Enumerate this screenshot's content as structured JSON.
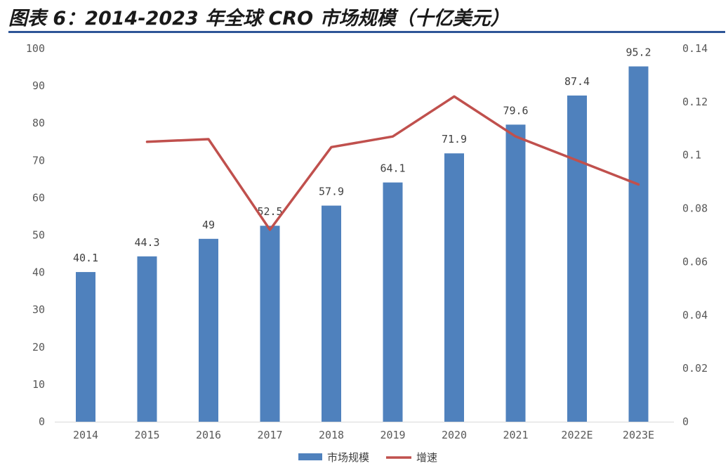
{
  "figure_title": "图表 6：2014-2023 年全球 CRO 市场规模（十亿美元）",
  "colors": {
    "bar": "#4f81bd",
    "line": "#c0504d",
    "accent_rule": "#2e5597"
  },
  "chart_data": {
    "type": "bar",
    "categories": [
      "2014",
      "2015",
      "2016",
      "2017",
      "2018",
      "2019",
      "2020",
      "2021",
      "2022E",
      "2023E"
    ],
    "series": [
      {
        "name": "市场规模",
        "type": "bar",
        "axis": "left",
        "values": [
          40.1,
          44.3,
          49,
          52.5,
          57.9,
          64.1,
          71.9,
          79.6,
          87.4,
          95.2
        ],
        "labels": [
          "40.1",
          "44.3",
          "49",
          "52.5",
          "57.9",
          "64.1",
          "71.9",
          "79.6",
          "87.4",
          "95.2"
        ]
      },
      {
        "name": "增速",
        "type": "line",
        "axis": "right",
        "values": [
          null,
          0.105,
          0.106,
          0.072,
          0.103,
          0.107,
          0.122,
          0.107,
          0.098,
          0.089
        ]
      }
    ],
    "y_left": {
      "lim": [
        0,
        100
      ],
      "ticks": [
        0,
        10,
        20,
        30,
        40,
        50,
        60,
        70,
        80,
        90,
        100
      ],
      "tick_labels": [
        "0",
        "10",
        "20",
        "30",
        "40",
        "50",
        "60",
        "70",
        "80",
        "90",
        "100"
      ]
    },
    "y_right": {
      "lim": [
        0,
        0.14
      ],
      "ticks": [
        0,
        0.02,
        0.04,
        0.06,
        0.08,
        0.1,
        0.12,
        0.14
      ],
      "tick_labels": [
        "0",
        "0.02",
        "0.04",
        "0.06",
        "0.08",
        "0.1",
        "0.12",
        "0.14"
      ]
    },
    "grid": false,
    "legend_position": "bottom"
  }
}
